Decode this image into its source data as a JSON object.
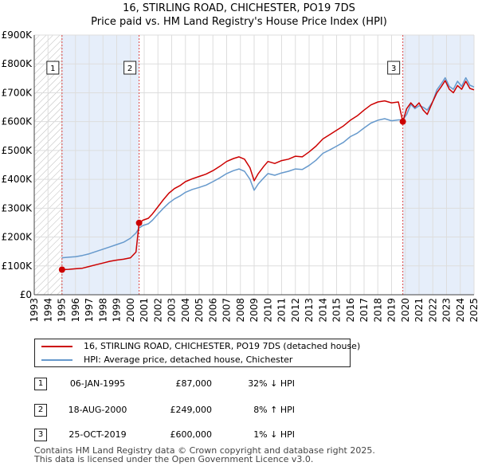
{
  "title_line1": "16, STIRLING ROAD, CHICHESTER, PO19 7DS",
  "title_line2": "Price paid vs. HM Land Registry's House Price Index (HPI)",
  "legend": [
    {
      "label": "16, STIRLING ROAD, CHICHESTER, PO19 7DS (detached house)",
      "color": "#cc0000"
    },
    {
      "label": "HPI: Average price, detached house, Chichester",
      "color": "#6699cc"
    }
  ],
  "transactions": [
    {
      "num": "1",
      "date": "06-JAN-1995",
      "price": "£87,000",
      "hpi": "32% ↓ HPI"
    },
    {
      "num": "2",
      "date": "18-AUG-2000",
      "price": "£249,000",
      "hpi": "8% ↑ HPI"
    },
    {
      "num": "3",
      "date": "25-OCT-2019",
      "price": "£600,000",
      "hpi": "1% ↓ HPI"
    }
  ],
  "footer_line1": "Contains HM Land Registry data © Crown copyright and database right 2025.",
  "footer_line2": "This data is licensed under the Open Government Licence v3.0.",
  "chart_data": {
    "type": "line",
    "title": "16, STIRLING ROAD, CHICHESTER, PO19 7DS",
    "subtitle": "Price paid vs. HM Land Registry's House Price Index (HPI)",
    "xlim": [
      1993,
      2025
    ],
    "ylim": [
      0,
      900000
    ],
    "y_ticks": [
      0,
      100000,
      200000,
      300000,
      400000,
      500000,
      600000,
      700000,
      800000,
      900000
    ],
    "y_tick_labels": [
      "£0",
      "£100K",
      "£200K",
      "£300K",
      "£400K",
      "£500K",
      "£600K",
      "£700K",
      "£800K",
      "£900K"
    ],
    "x_ticks": [
      1993,
      1994,
      1995,
      1996,
      1997,
      1998,
      1999,
      2000,
      2001,
      2002,
      2003,
      2004,
      2005,
      2006,
      2007,
      2008,
      2009,
      2010,
      2011,
      2012,
      2013,
      2014,
      2015,
      2016,
      2017,
      2018,
      2019,
      2020,
      2021,
      2022,
      2023,
      2024,
      2025
    ],
    "x_tick_labels": [
      "1993",
      "1994",
      "1995",
      "1996",
      "1997",
      "1998",
      "1999",
      "2000",
      "2001",
      "2002",
      "2003",
      "2004",
      "2005",
      "2006",
      "2007",
      "2008",
      "2009",
      "2010",
      "2011",
      "2012",
      "2013",
      "2014",
      "2015",
      "2016",
      "2017",
      "2018",
      "2019",
      "2020",
      "2021",
      "2022",
      "2023",
      "2024",
      "2025"
    ],
    "hatch_before": 1995.02,
    "shaded_ranges": [
      [
        1995.02,
        2000.63
      ],
      [
        2019.82,
        2025
      ]
    ],
    "series": [
      {
        "name": "16, STIRLING ROAD, CHICHESTER, PO19 7DS (detached house)",
        "color": "#cc0000",
        "x": [
          1995.02,
          1995.5,
          1996,
          1996.5,
          1997,
          1997.5,
          1998,
          1998.5,
          1999,
          1999.5,
          2000,
          2000.4,
          2000.63,
          2000.9,
          2001.3,
          2001.6,
          2002,
          2002.4,
          2002.8,
          2003.2,
          2003.6,
          2004,
          2004.5,
          2005,
          2005.5,
          2006,
          2006.5,
          2007,
          2007.5,
          2007.9,
          2008.3,
          2008.7,
          2009.0,
          2009.3,
          2009.7,
          2010,
          2010.5,
          2011,
          2011.5,
          2012,
          2012.5,
          2013,
          2013.5,
          2014,
          2014.5,
          2015,
          2015.5,
          2016,
          2016.5,
          2017,
          2017.5,
          2018,
          2018.5,
          2019,
          2019.5,
          2019.82,
          2020.1,
          2020.4,
          2020.7,
          2021,
          2021.3,
          2021.6,
          2022,
          2022.3,
          2022.6,
          2022.9,
          2023.2,
          2023.5,
          2023.8,
          2024.1,
          2024.4,
          2024.7,
          2025
        ],
        "values": [
          87000,
          88000,
          90000,
          92000,
          98000,
          104000,
          110000,
          116000,
          120000,
          123000,
          128000,
          148000,
          249000,
          258000,
          265000,
          280000,
          305000,
          330000,
          352000,
          368000,
          378000,
          392000,
          402000,
          410000,
          418000,
          430000,
          445000,
          462000,
          472000,
          478000,
          470000,
          440000,
          395000,
          420000,
          445000,
          462000,
          455000,
          465000,
          470000,
          480000,
          478000,
          495000,
          515000,
          540000,
          555000,
          570000,
          585000,
          605000,
          620000,
          640000,
          658000,
          668000,
          672000,
          665000,
          668000,
          600000,
          645000,
          665000,
          650000,
          665000,
          640000,
          625000,
          670000,
          700000,
          720000,
          742000,
          712000,
          700000,
          725000,
          712000,
          740000,
          715000,
          710000
        ]
      },
      {
        "name": "HPI: Average price, detached house, Chichester",
        "color": "#6699cc",
        "x": [
          1995.02,
          1995.5,
          1996,
          1996.5,
          1997,
          1997.5,
          1998,
          1998.5,
          1999,
          1999.5,
          2000,
          2000.4,
          2000.63,
          2000.9,
          2001.3,
          2001.6,
          2002,
          2002.4,
          2002.8,
          2003.2,
          2003.6,
          2004,
          2004.5,
          2005,
          2005.5,
          2006,
          2006.5,
          2007,
          2007.5,
          2007.9,
          2008.3,
          2008.7,
          2009.0,
          2009.3,
          2009.7,
          2010,
          2010.5,
          2011,
          2011.5,
          2012,
          2012.5,
          2013,
          2013.5,
          2014,
          2014.5,
          2015,
          2015.5,
          2016,
          2016.5,
          2017,
          2017.5,
          2018,
          2018.5,
          2019,
          2019.5,
          2019.82,
          2020.1,
          2020.4,
          2020.7,
          2021,
          2021.3,
          2021.6,
          2022,
          2022.3,
          2022.6,
          2022.9,
          2023.2,
          2023.5,
          2023.8,
          2024.1,
          2024.4,
          2024.7,
          2025
        ],
        "values": [
          128000,
          130000,
          132000,
          136000,
          142000,
          150000,
          158000,
          166000,
          174000,
          182000,
          196000,
          214000,
          231000,
          240000,
          246000,
          258000,
          280000,
          300000,
          318000,
          332000,
          342000,
          355000,
          365000,
          372000,
          380000,
          392000,
          405000,
          420000,
          430000,
          436000,
          428000,
          400000,
          362000,
          384000,
          405000,
          420000,
          414000,
          422000,
          428000,
          436000,
          434000,
          448000,
          466000,
          490000,
          502000,
          515000,
          528000,
          548000,
          560000,
          578000,
          595000,
          605000,
          610000,
          603000,
          606000,
          606000,
          625000,
          660000,
          645000,
          655000,
          650000,
          640000,
          670000,
          710000,
          730000,
          752000,
          722000,
          712000,
          740000,
          722000,
          752000,
          726000,
          720000
        ]
      }
    ],
    "markers": [
      {
        "label": "1",
        "x": 1995.02,
        "y": 87000
      },
      {
        "label": "2",
        "x": 2000.63,
        "y": 249000
      },
      {
        "label": "3",
        "x": 2019.82,
        "y": 600000
      }
    ],
    "legend_position": "bottom"
  }
}
